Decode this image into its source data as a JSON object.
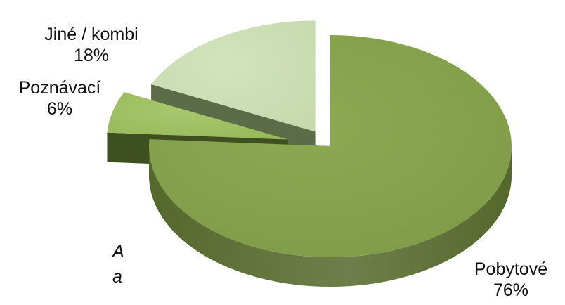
{
  "chart_data": {
    "type": "pie",
    "style": "3d-exploded",
    "title": "",
    "slices": [
      {
        "name": "Pobytové",
        "value": 76,
        "value_label": "76%",
        "color": "#7E9A47",
        "side_color": "#55682B",
        "highlight": "#8CAA52"
      },
      {
        "name": "Poznávací",
        "value": 6,
        "value_label": "6%",
        "color": "#96B85A",
        "side_color": "#3F5020",
        "highlight": "#A7C86C"
      },
      {
        "name": "Jiné / kombi",
        "value": 18,
        "value_label": "18%",
        "color": "#C6D9AD",
        "side_color": "#5C6B48",
        "highlight": "#D3E3BE"
      }
    ]
  },
  "side_text": {
    "line1": "A",
    "line2": "a"
  }
}
